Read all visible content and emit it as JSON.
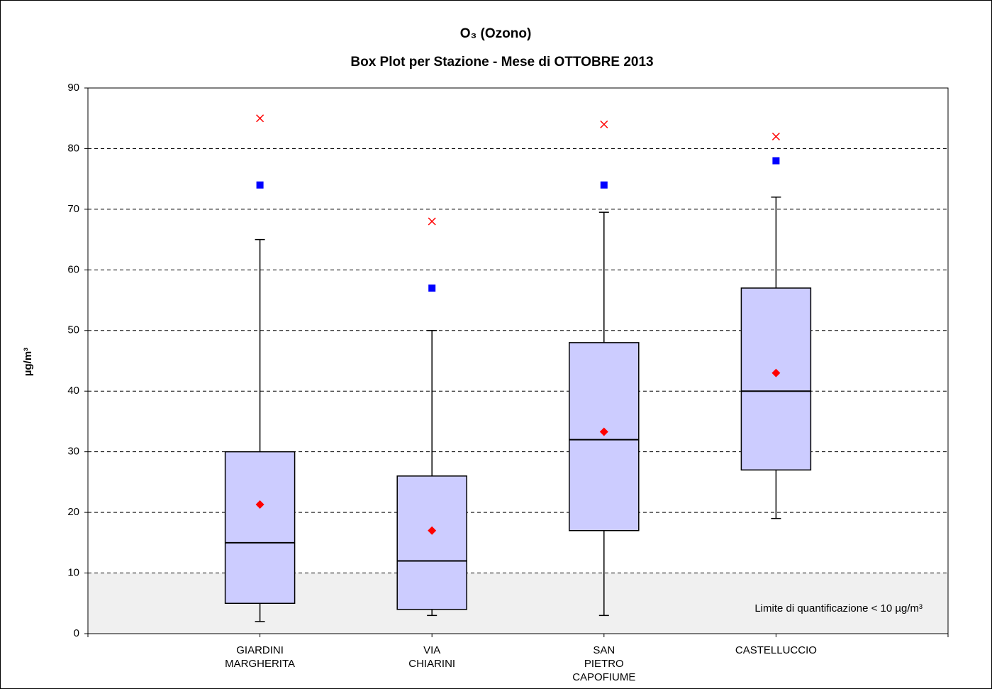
{
  "chart_data": {
    "type": "boxplot",
    "title": [
      "O₃ (Ozono)",
      "Box Plot per Stazione - Mese di OTTOBRE 2013"
    ],
    "y_label": "µg/m³",
    "annotation": "Limite di quantificazione < 10 µg/m³",
    "categories": [
      "GIARDINI\nMARGHERITA",
      "VIA\nCHIARINI",
      "SAN\nPIETRO\nCAPOFIUME",
      "CASTELLUCCIO"
    ],
    "boxes": [
      {
        "min": 2,
        "q1": 5,
        "median": 15,
        "q3": 30,
        "max": 65,
        "mean": 21.3,
        "p98": 74,
        "peak": 85
      },
      {
        "min": 3,
        "q1": 4,
        "median": 12,
        "q3": 26,
        "max": 50,
        "mean": 17,
        "p98": 57,
        "peak": 68
      },
      {
        "min": 3,
        "q1": 17,
        "median": 32,
        "q3": 48,
        "max": 69.5,
        "mean": 33.3,
        "p98": 74,
        "peak": 84
      },
      {
        "min": 19,
        "q1": 27,
        "median": 40,
        "q3": 57,
        "max": 72,
        "mean": 43,
        "p98": 78,
        "peak": 82
      }
    ],
    "box_color": "#ccccff",
    "mean_color": "#ff0000",
    "p98_color": "#0000ff",
    "peak_color": "#ff0000",
    "shade": {
      "from": 0,
      "to": 10,
      "color": "#f0f0f0"
    },
    "ylim": [
      0,
      90
    ],
    "yticks": [
      0,
      10,
      20,
      30,
      40,
      50,
      60,
      70,
      80,
      90
    ],
    "grid": true
  }
}
